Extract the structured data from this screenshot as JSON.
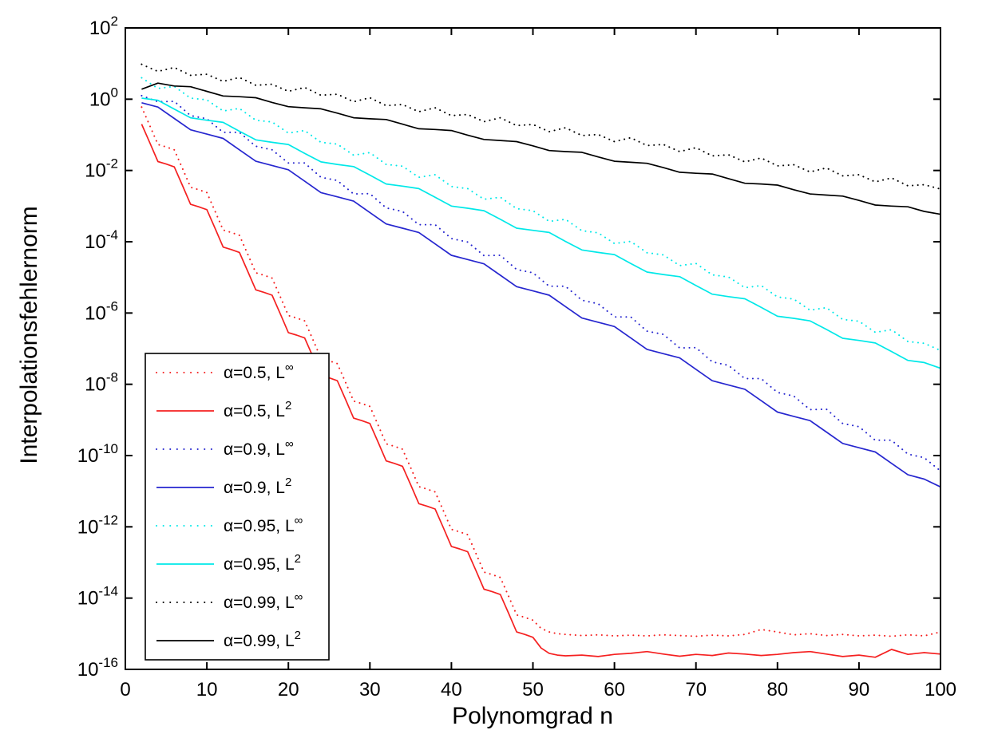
{
  "chart_data": {
    "type": "line",
    "title": "",
    "xlabel": "Polynomgrad n",
    "ylabel": "Interpolationsfehlernorm",
    "x_axis": {
      "min": 0,
      "max": 100,
      "ticks": [
        0,
        10,
        20,
        30,
        40,
        50,
        60,
        70,
        80,
        90,
        100
      ]
    },
    "y_axis": {
      "scale": "log10",
      "min_exponent": -16,
      "max_exponent": 2,
      "tick_exponents": [
        2,
        0,
        -2,
        -4,
        -6,
        -8,
        -10,
        -12,
        -14,
        -16
      ],
      "tick_label_base": "10"
    },
    "grid": "off",
    "legend_position": "lower-left",
    "n_grid_default": {
      "start": 2,
      "end": 100,
      "step": 2
    },
    "series": [
      {
        "name": "α=0.5, L∞",
        "legend": {
          "prefix": "α=0.5, L",
          "sup": "∞"
        },
        "color": "#f52020",
        "style": "dotted",
        "n": [
          2,
          3,
          4,
          5,
          6,
          7,
          8,
          9,
          10,
          11,
          12,
          13,
          14,
          15,
          16,
          17,
          18,
          19,
          20,
          21,
          22,
          23,
          24,
          25,
          26,
          27,
          28,
          29,
          30,
          31,
          32,
          33,
          34,
          35,
          36,
          37,
          38,
          39,
          40,
          41,
          42,
          43,
          44,
          45,
          46,
          47,
          48,
          49,
          50,
          51,
          52,
          53,
          54,
          56,
          58,
          60,
          62,
          64,
          66,
          68,
          70,
          72,
          74,
          76,
          78,
          80,
          82,
          84,
          86,
          88,
          90,
          92,
          94,
          96,
          98,
          100
        ],
        "log10": [
          -0.22,
          -0.74,
          -1.27,
          -1.34,
          -1.42,
          -1.94,
          -2.47,
          -2.54,
          -2.62,
          -3.14,
          -3.67,
          -3.74,
          -3.82,
          -4.34,
          -4.87,
          -4.94,
          -5.02,
          -5.54,
          -6.07,
          -6.14,
          -6.22,
          -6.74,
          -7.27,
          -7.34,
          -7.42,
          -7.94,
          -8.47,
          -8.54,
          -8.62,
          -9.14,
          -9.67,
          -9.74,
          -9.82,
          -10.34,
          -10.87,
          -10.94,
          -11.02,
          -11.54,
          -12.07,
          -12.14,
          -12.22,
          -12.74,
          -13.27,
          -13.34,
          -13.42,
          -13.94,
          -14.47,
          -14.54,
          -14.62,
          -14.85,
          -14.95,
          -15.0,
          -15.02,
          -15.05,
          -15.03,
          -15.06,
          -15.04,
          -15.06,
          -15.03,
          -15.05,
          -15.07,
          -15.04,
          -15.06,
          -15.02,
          -14.88,
          -14.95,
          -15.03,
          -15.0,
          -15.05,
          -15.02,
          -15.06,
          -15.04,
          -15.07,
          -15.03,
          -15.06,
          -14.95
        ]
      },
      {
        "name": "α=0.5, L²",
        "legend": {
          "prefix": "α=0.5, L",
          "sup": "2"
        },
        "color": "#f52020",
        "style": "solid",
        "n": [
          2,
          3,
          4,
          5,
          6,
          7,
          8,
          9,
          10,
          11,
          12,
          13,
          14,
          15,
          16,
          17,
          18,
          19,
          20,
          21,
          22,
          23,
          24,
          25,
          26,
          27,
          28,
          29,
          30,
          31,
          32,
          33,
          34,
          35,
          36,
          37,
          38,
          39,
          40,
          41,
          42,
          43,
          44,
          45,
          46,
          47,
          48,
          49,
          50,
          51,
          52,
          53,
          54,
          56,
          58,
          60,
          62,
          64,
          66,
          68,
          70,
          72,
          74,
          76,
          78,
          80,
          82,
          84,
          86,
          88,
          90,
          92,
          94,
          96,
          98,
          100
        ],
        "log10": [
          -0.7,
          -1.22,
          -1.75,
          -1.82,
          -1.9,
          -2.42,
          -2.95,
          -3.02,
          -3.1,
          -3.62,
          -4.15,
          -4.22,
          -4.3,
          -4.82,
          -5.35,
          -5.42,
          -5.5,
          -6.02,
          -6.55,
          -6.62,
          -6.7,
          -7.22,
          -7.75,
          -7.82,
          -7.9,
          -8.42,
          -8.95,
          -9.02,
          -9.1,
          -9.62,
          -10.15,
          -10.22,
          -10.3,
          -10.82,
          -11.35,
          -11.42,
          -11.5,
          -12.02,
          -12.55,
          -12.62,
          -12.7,
          -13.22,
          -13.75,
          -13.82,
          -13.9,
          -14.42,
          -14.95,
          -15.02,
          -15.1,
          -15.4,
          -15.55,
          -15.6,
          -15.62,
          -15.6,
          -15.64,
          -15.58,
          -15.55,
          -15.5,
          -15.57,
          -15.63,
          -15.58,
          -15.61,
          -15.54,
          -15.57,
          -15.61,
          -15.58,
          -15.53,
          -15.5,
          -15.57,
          -15.64,
          -15.6,
          -15.66,
          -15.44,
          -15.58,
          -15.53,
          -15.57
        ]
      },
      {
        "name": "α=0.9, L∞",
        "legend": {
          "prefix": "α=0.9, L",
          "sup": "∞"
        },
        "color": "#2626cf",
        "style": "dotted",
        "log10": [
          0.1,
          -0.07,
          -0.06,
          -0.46,
          -0.55,
          -0.93,
          -0.93,
          -1.32,
          -1.42,
          -1.79,
          -1.79,
          -2.19,
          -2.28,
          -2.66,
          -2.65,
          -3.05,
          -3.15,
          -3.52,
          -3.52,
          -3.91,
          -4.01,
          -4.39,
          -4.38,
          -4.78,
          -4.87,
          -5.25,
          -5.25,
          -5.64,
          -5.74,
          -6.11,
          -6.11,
          -6.51,
          -6.6,
          -6.98,
          -6.97,
          -7.37,
          -7.47,
          -7.84,
          -7.84,
          -8.23,
          -8.33,
          -8.71,
          -8.7,
          -9.1,
          -9.19,
          -9.57,
          -9.57,
          -9.96,
          -10.06,
          -10.43
        ]
      },
      {
        "name": "α=0.9, L²",
        "legend": {
          "prefix": "α=0.9, L",
          "sup": "2"
        },
        "color": "#2626cf",
        "style": "solid",
        "log10": [
          -0.1,
          -0.22,
          -0.54,
          -0.86,
          -0.98,
          -1.1,
          -1.42,
          -1.74,
          -1.86,
          -1.98,
          -2.3,
          -2.62,
          -2.74,
          -2.86,
          -3.18,
          -3.5,
          -3.62,
          -3.74,
          -4.06,
          -4.38,
          -4.5,
          -4.62,
          -4.94,
          -5.26,
          -5.38,
          -5.5,
          -5.82,
          -6.14,
          -6.26,
          -6.38,
          -6.7,
          -7.02,
          -7.14,
          -7.26,
          -7.58,
          -7.9,
          -8.02,
          -8.14,
          -8.46,
          -8.78,
          -8.9,
          -9.02,
          -9.34,
          -9.66,
          -9.78,
          -9.9,
          -10.22,
          -10.54,
          -10.66,
          -10.88
        ]
      },
      {
        "name": "α=0.95, L∞",
        "legend": {
          "prefix": "α=0.95, L",
          "sup": "∞"
        },
        "color": "#00e8e8",
        "style": "dotted",
        "log10": [
          0.6,
          0.3,
          0.36,
          0.03,
          -0.02,
          -0.33,
          -0.26,
          -0.59,
          -0.64,
          -0.95,
          -0.88,
          -1.21,
          -1.26,
          -1.57,
          -1.5,
          -1.83,
          -1.88,
          -2.19,
          -2.12,
          -2.45,
          -2.51,
          -2.81,
          -2.75,
          -3.07,
          -3.13,
          -3.43,
          -3.37,
          -3.69,
          -3.75,
          -4.05,
          -3.99,
          -4.31,
          -4.37,
          -4.67,
          -4.61,
          -4.93,
          -4.99,
          -5.29,
          -5.23,
          -5.55,
          -5.61,
          -5.92,
          -5.85,
          -6.18,
          -6.23,
          -6.54,
          -6.47,
          -6.8,
          -6.85,
          -7.05
        ]
      },
      {
        "name": "α=0.95, L²",
        "legend": {
          "prefix": "α=0.95, L",
          "sup": "2"
        },
        "color": "#00e8e8",
        "style": "solid",
        "log10": [
          0.03,
          -0.03,
          -0.28,
          -0.52,
          -0.59,
          -0.65,
          -0.9,
          -1.14,
          -1.21,
          -1.27,
          -1.52,
          -1.76,
          -1.83,
          -1.89,
          -2.13,
          -2.38,
          -2.44,
          -2.51,
          -2.75,
          -3.0,
          -3.06,
          -3.13,
          -3.37,
          -3.62,
          -3.68,
          -3.74,
          -3.99,
          -4.23,
          -4.3,
          -4.36,
          -4.61,
          -4.85,
          -4.92,
          -4.98,
          -5.23,
          -5.47,
          -5.54,
          -5.6,
          -5.84,
          -6.09,
          -6.15,
          -6.22,
          -6.46,
          -6.71,
          -6.77,
          -6.84,
          -7.08,
          -7.33,
          -7.39,
          -7.55
        ]
      },
      {
        "name": "α=0.99, L∞",
        "legend": {
          "prefix": "α=0.99, L",
          "sup": "∞"
        },
        "color": "#000000",
        "style": "dotted",
        "log10": [
          0.98,
          0.78,
          0.89,
          0.67,
          0.7,
          0.5,
          0.61,
          0.39,
          0.42,
          0.22,
          0.33,
          0.11,
          0.14,
          -0.07,
          0.04,
          -0.18,
          -0.15,
          -0.35,
          -0.24,
          -0.46,
          -0.43,
          -0.63,
          -0.52,
          -0.74,
          -0.71,
          -0.91,
          -0.8,
          -1.02,
          -0.99,
          -1.19,
          -1.08,
          -1.3,
          -1.27,
          -1.47,
          -1.36,
          -1.59,
          -1.56,
          -1.76,
          -1.65,
          -1.87,
          -1.84,
          -2.04,
          -1.93,
          -2.15,
          -2.12,
          -2.32,
          -2.21,
          -2.43,
          -2.4,
          -2.52
        ]
      },
      {
        "name": "α=0.99, L²",
        "legend": {
          "prefix": "α=0.99, L",
          "sup": "2"
        },
        "color": "#000000",
        "style": "solid",
        "log10": [
          0.28,
          0.45,
          0.37,
          0.35,
          0.22,
          0.09,
          0.07,
          0.04,
          -0.09,
          -0.21,
          -0.24,
          -0.27,
          -0.39,
          -0.52,
          -0.55,
          -0.57,
          -0.7,
          -0.83,
          -0.85,
          -0.88,
          -1.01,
          -1.13,
          -1.16,
          -1.19,
          -1.31,
          -1.44,
          -1.47,
          -1.49,
          -1.62,
          -1.74,
          -1.77,
          -1.8,
          -1.92,
          -2.05,
          -2.08,
          -2.1,
          -2.23,
          -2.36,
          -2.38,
          -2.41,
          -2.54,
          -2.66,
          -2.69,
          -2.72,
          -2.84,
          -2.97,
          -3.0,
          -3.02,
          -3.15,
          -3.23
        ]
      }
    ]
  }
}
